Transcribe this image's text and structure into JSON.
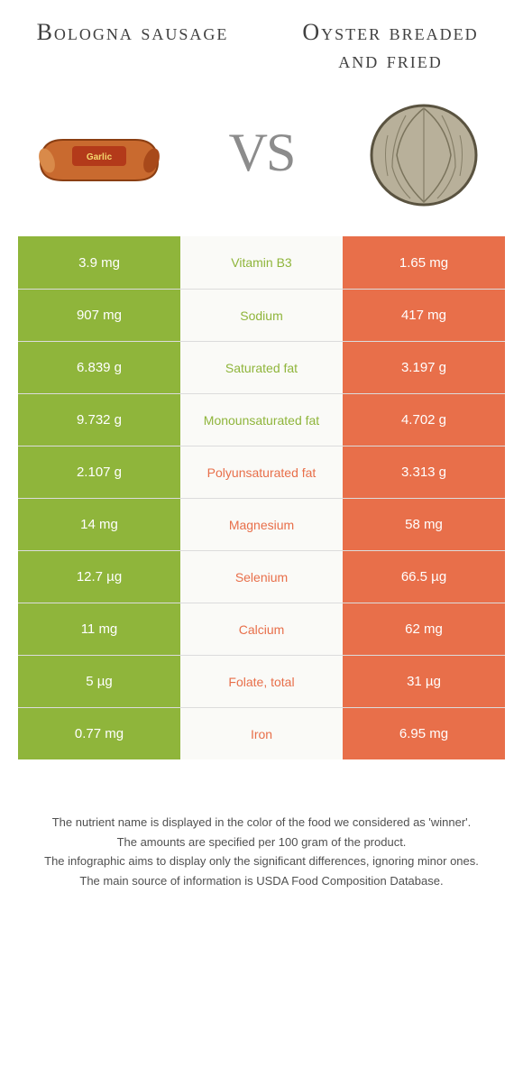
{
  "header": {
    "left_title": "Bologna sausage",
    "right_title": "Oyster breaded and fried",
    "vs": "VS"
  },
  "colors": {
    "left": "#8fb53b",
    "right": "#e86f4a",
    "mid_bg": "#fafaf7",
    "row_border": "#dcdcdc",
    "mid_text_left": "#8fb53b",
    "mid_text_right": "#e86f4a"
  },
  "rows": [
    {
      "left": "3.9 mg",
      "label": "Vitamin B3",
      "right": "1.65 mg",
      "winner": "left"
    },
    {
      "left": "907 mg",
      "label": "Sodium",
      "right": "417 mg",
      "winner": "left"
    },
    {
      "left": "6.839 g",
      "label": "Saturated fat",
      "right": "3.197 g",
      "winner": "left"
    },
    {
      "left": "9.732 g",
      "label": "Monounsaturated fat",
      "right": "4.702 g",
      "winner": "left"
    },
    {
      "left": "2.107 g",
      "label": "Polyunsaturated fat",
      "right": "3.313 g",
      "winner": "right"
    },
    {
      "left": "14 mg",
      "label": "Magnesium",
      "right": "58 mg",
      "winner": "right"
    },
    {
      "left": "12.7 µg",
      "label": "Selenium",
      "right": "66.5 µg",
      "winner": "right"
    },
    {
      "left": "11 mg",
      "label": "Calcium",
      "right": "62 mg",
      "winner": "right"
    },
    {
      "left": "5 µg",
      "label": "Folate, total",
      "right": "31 µg",
      "winner": "right"
    },
    {
      "left": "0.77 mg",
      "label": "Iron",
      "right": "6.95 mg",
      "winner": "right"
    }
  ],
  "footer": [
    "The nutrient name is displayed in the color of the food we considered as 'winner'.",
    "The amounts are specified per 100 gram of the product.",
    "The infographic aims to display only the significant differences, ignoring minor ones.",
    "The main source of information is USDA Food Composition Database."
  ]
}
